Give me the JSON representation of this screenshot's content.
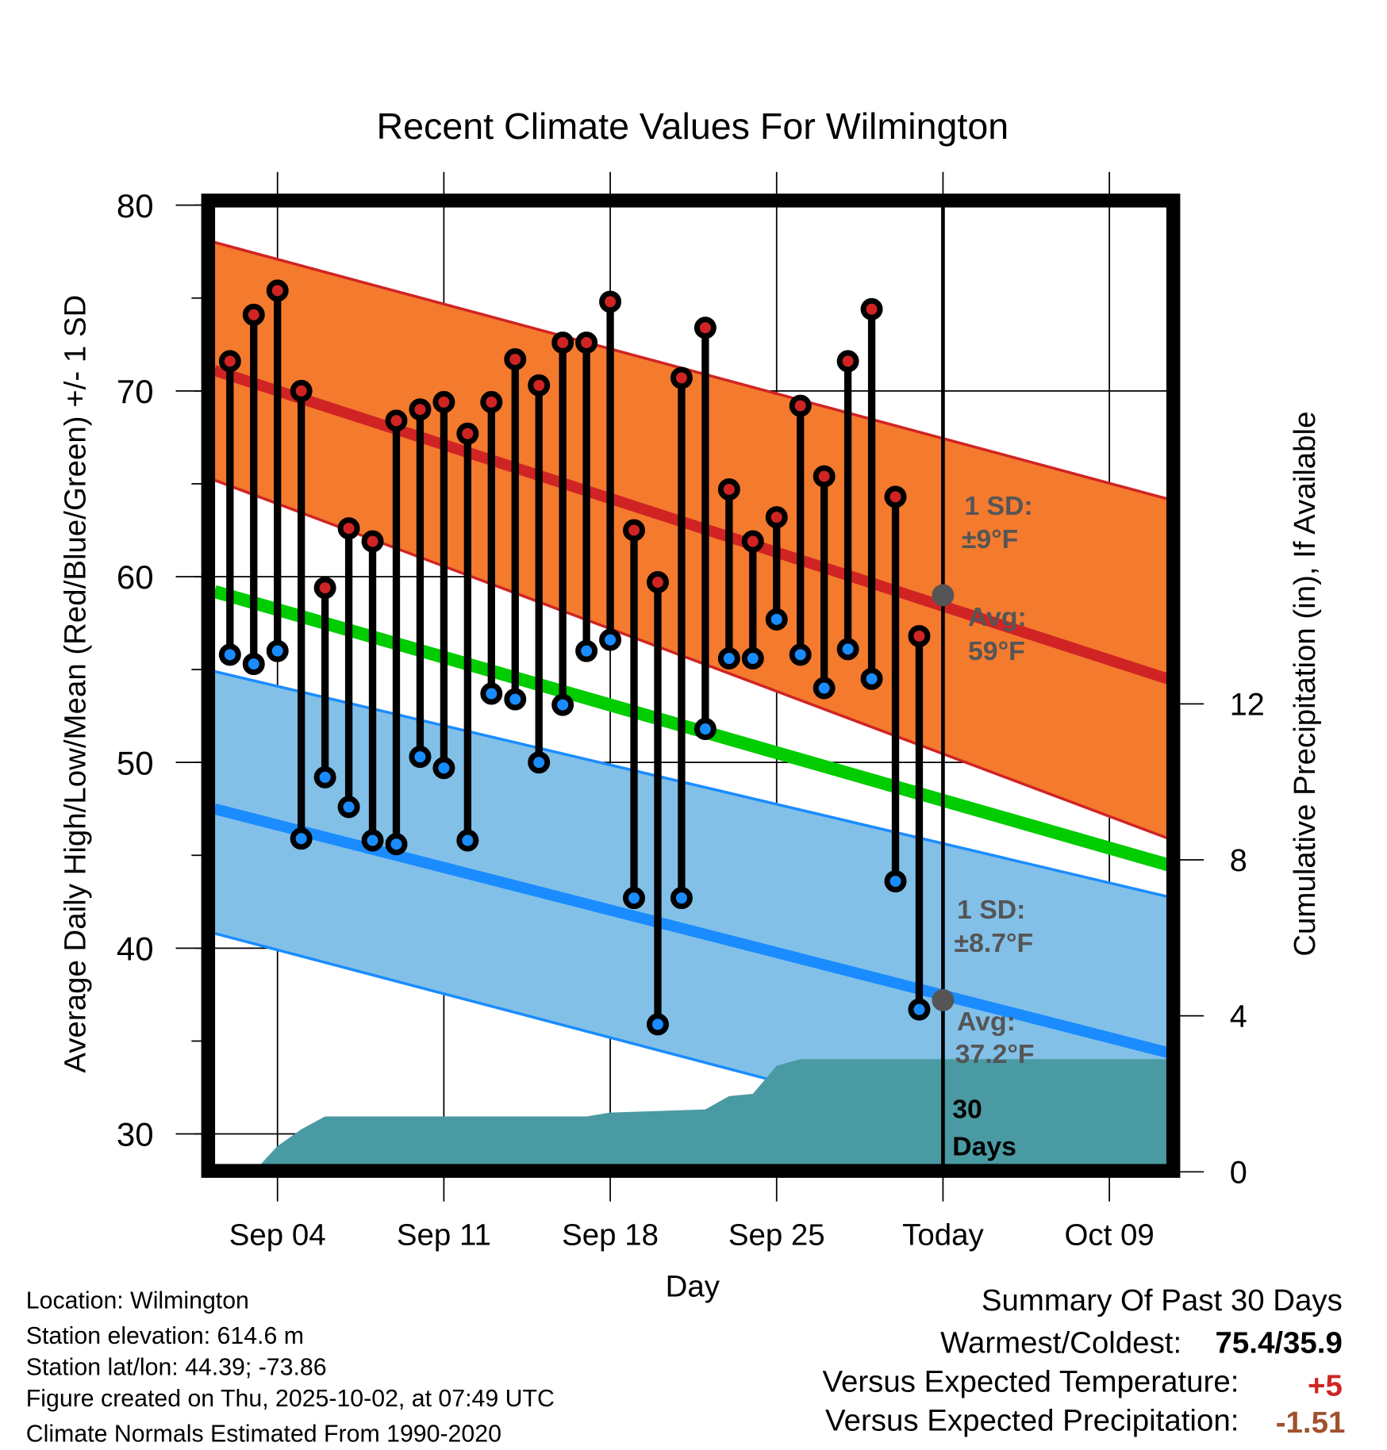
{
  "chart_data": {
    "type": "line",
    "title": "Recent Climate Values For Wilmington",
    "xlabel": "Day",
    "ylabel": "Average Daily High/Low/Mean (Red/Blue/Green) +/- 1 SD",
    "y2label": "Cumulative Precipitation (in), If Available",
    "ylim": [
      28.3,
      80
    ],
    "y2lim": [
      0,
      15
    ],
    "xlim_days_from_sep04": [
      -2.65,
      37.7
    ],
    "yticks": [
      30,
      40,
      50,
      60,
      70,
      80
    ],
    "y2ticks": [
      0,
      4,
      8,
      12
    ],
    "xticks": [
      {
        "day": 0,
        "label": "Sep 04"
      },
      {
        "day": 7,
        "label": "Sep 11"
      },
      {
        "day": 14,
        "label": "Sep 18"
      },
      {
        "day": 21,
        "label": "Sep 25"
      },
      {
        "day": 28,
        "label": "Today"
      },
      {
        "day": 35,
        "label": "Oct 09"
      }
    ],
    "grid": true,
    "observed": {
      "days_from_sep04": [
        -2,
        -1,
        0,
        1,
        2,
        3,
        4,
        5,
        6,
        7,
        8,
        9,
        10,
        11,
        12,
        13,
        14,
        15,
        16,
        17,
        18,
        19,
        20,
        21,
        22,
        23,
        24,
        25,
        26,
        27
      ],
      "high": [
        71.6,
        74.1,
        75.4,
        70.0,
        59.4,
        62.6,
        61.9,
        68.4,
        69.0,
        69.4,
        67.7,
        69.4,
        71.7,
        70.3,
        72.6,
        72.6,
        74.8,
        62.5,
        59.7,
        70.7,
        73.4,
        64.7,
        61.9,
        63.2,
        69.2,
        65.4,
        71.6,
        74.4,
        64.3,
        56.8
      ],
      "low": [
        55.8,
        55.3,
        56.0,
        45.9,
        49.2,
        47.6,
        45.8,
        45.6,
        50.3,
        49.7,
        45.8,
        53.7,
        53.4,
        50.0,
        53.1,
        56.0,
        56.6,
        42.7,
        35.9,
        42.7,
        51.8,
        55.6,
        55.6,
        57.7,
        55.8,
        54.0,
        56.1,
        54.5,
        43.6,
        36.7
      ]
    },
    "normals": {
      "days_from_sep04": [
        -2.65,
        37.7
      ],
      "high_avg": [
        71.1,
        54.4
      ],
      "high_plus_sd": [
        78.0,
        64.1
      ],
      "high_minus_sd": [
        65.2,
        45.8
      ],
      "mean": [
        59.2,
        44.4
      ],
      "low_plus_sd": [
        54.9,
        42.7
      ],
      "low_avg": [
        47.5,
        34.3
      ],
      "low_minus_sd": [
        40.8,
        27.2
      ]
    },
    "today_markers": {
      "day": 28,
      "high_avg": 59,
      "low_avg": 37.2
    },
    "precip_cumulative": {
      "days_from_sep04": [
        -1,
        0,
        1,
        2,
        13,
        14,
        18,
        19,
        20,
        21,
        22,
        37.7
      ],
      "values": [
        0,
        0.66,
        1.09,
        1.42,
        1.42,
        1.52,
        1.6,
        1.94,
        2.0,
        2.72,
        2.89,
        2.89
      ]
    },
    "annotations": {
      "high_sd_line1": "1 SD:",
      "high_sd_line2": "±9°F",
      "high_avg_line1": "Avg:",
      "high_avg_line2": "59°F",
      "low_sd_line1": "1 SD:",
      "low_sd_line2": "±8.7°F",
      "low_avg_line1": "Avg:",
      "low_avg_line2": "37.2°F",
      "days_line1": "30",
      "days_line2": "Days"
    },
    "colors": {
      "high_band": "#f47a2e",
      "high_line": "#d02424",
      "mean": "#00cc00",
      "low_band": "#82c0e8",
      "low_line": "#1a8cff",
      "precip": "#4a9aa3",
      "annotation": "#555555"
    }
  },
  "footer": {
    "left": [
      "Location: Wilmington",
      "Station elevation: 614.6 m",
      "Station lat/lon: 44.39; -73.86",
      "Figure created on Thu, 2025-10-02, at 07:49 UTC",
      "Climate Normals Estimated From 1990-2020"
    ],
    "summary_title": "Summary Of Past 30 Days",
    "warmest_label": "Warmest/Coldest:",
    "warmest_value": "75.4/35.9",
    "temp_label": "Versus Expected Temperature:",
    "temp_value": "+5",
    "precip_label": "Versus Expected Precipitation:",
    "precip_value": "-1.51"
  }
}
